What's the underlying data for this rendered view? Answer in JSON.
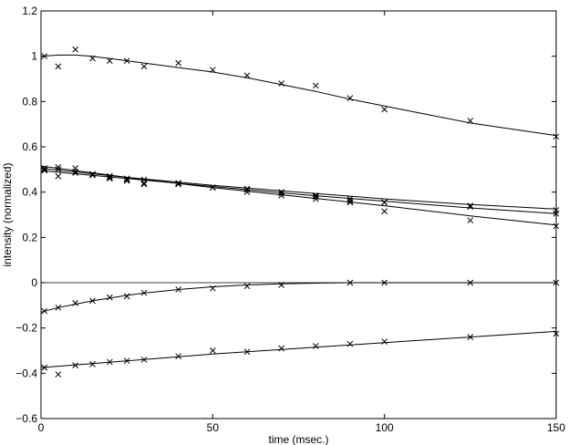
{
  "chart_data": {
    "type": "scatter",
    "title": "",
    "xlabel": "time (msec.)",
    "ylabel": "intensity (normalized)",
    "xlim": [
      0,
      150
    ],
    "ylim": [
      -0.6,
      1.2
    ],
    "xticks": [
      "0",
      "50",
      "100",
      "150"
    ],
    "yticks": [
      "−0.6",
      "−0.4",
      "−0.2",
      "0",
      "0.2",
      "0.4",
      "0.6",
      "0.8",
      "1",
      "1.2"
    ],
    "grid": false,
    "legend": "none",
    "reference_line_y": 0,
    "marker": "x",
    "color": "#000000",
    "series": [
      {
        "points": [
          [
            1,
            1.0
          ],
          [
            5,
            0.955
          ],
          [
            10,
            1.03
          ],
          [
            15,
            0.99
          ],
          [
            20,
            0.98
          ],
          [
            25,
            0.98
          ],
          [
            30,
            0.955
          ],
          [
            40,
            0.97
          ],
          [
            50,
            0.94
          ],
          [
            60,
            0.915
          ],
          [
            70,
            0.88
          ],
          [
            80,
            0.87
          ],
          [
            90,
            0.815
          ],
          [
            100,
            0.765
          ],
          [
            125,
            0.715
          ],
          [
            150,
            0.645
          ]
        ],
        "fit": [
          [
            0,
            1.0
          ],
          [
            5,
            1.005
          ],
          [
            10,
            1.005
          ],
          [
            15,
            1.0
          ],
          [
            20,
            0.99
          ],
          [
            25,
            0.98
          ],
          [
            30,
            0.97
          ],
          [
            40,
            0.95
          ],
          [
            50,
            0.93
          ],
          [
            60,
            0.905
          ],
          [
            70,
            0.875
          ],
          [
            80,
            0.845
          ],
          [
            90,
            0.81
          ],
          [
            100,
            0.78
          ],
          [
            110,
            0.75
          ],
          [
            125,
            0.705
          ],
          [
            150,
            0.65
          ]
        ]
      },
      {
        "points": [
          [
            1,
            0.505
          ],
          [
            5,
            0.51
          ],
          [
            10,
            0.505
          ],
          [
            15,
            0.48
          ],
          [
            20,
            0.47
          ],
          [
            25,
            0.46
          ],
          [
            30,
            0.455
          ],
          [
            40,
            0.44
          ],
          [
            50,
            0.42
          ],
          [
            60,
            0.41
          ],
          [
            70,
            0.395
          ],
          [
            80,
            0.385
          ],
          [
            90,
            0.37
          ],
          [
            100,
            0.355
          ],
          [
            125,
            0.34
          ],
          [
            150,
            0.32
          ]
        ],
        "fit": [
          [
            0,
            0.505
          ],
          [
            25,
            0.465
          ],
          [
            50,
            0.43
          ],
          [
            75,
            0.4
          ],
          [
            100,
            0.37
          ],
          [
            125,
            0.345
          ],
          [
            150,
            0.325
          ]
        ]
      },
      {
        "points": [
          [
            1,
            0.5
          ],
          [
            5,
            0.5
          ],
          [
            10,
            0.49
          ],
          [
            15,
            0.475
          ],
          [
            20,
            0.465
          ],
          [
            25,
            0.455
          ],
          [
            30,
            0.44
          ],
          [
            40,
            0.44
          ],
          [
            50,
            0.42
          ],
          [
            60,
            0.415
          ],
          [
            70,
            0.4
          ],
          [
            80,
            0.38
          ],
          [
            90,
            0.36
          ],
          [
            100,
            0.355
          ],
          [
            125,
            0.335
          ],
          [
            150,
            0.305
          ]
        ],
        "fit": [
          [
            0,
            0.495
          ],
          [
            25,
            0.46
          ],
          [
            50,
            0.425
          ],
          [
            75,
            0.39
          ],
          [
            100,
            0.36
          ],
          [
            125,
            0.33
          ],
          [
            150,
            0.305
          ]
        ]
      },
      {
        "points": [
          [
            1,
            0.495
          ],
          [
            5,
            0.47
          ],
          [
            10,
            0.485
          ],
          [
            15,
            0.475
          ],
          [
            20,
            0.46
          ],
          [
            25,
            0.45
          ],
          [
            30,
            0.435
          ],
          [
            40,
            0.435
          ],
          [
            50,
            0.42
          ],
          [
            60,
            0.4
          ],
          [
            70,
            0.385
          ],
          [
            80,
            0.37
          ],
          [
            90,
            0.355
          ],
          [
            100,
            0.315
          ],
          [
            125,
            0.275
          ],
          [
            150,
            0.25
          ]
        ],
        "fit": [
          [
            0,
            0.515
          ],
          [
            25,
            0.465
          ],
          [
            50,
            0.42
          ],
          [
            75,
            0.38
          ],
          [
            100,
            0.34
          ],
          [
            125,
            0.295
          ],
          [
            150,
            0.255
          ]
        ]
      },
      {
        "points": [
          [
            1,
            -0.125
          ],
          [
            5,
            -0.11
          ],
          [
            10,
            -0.09
          ],
          [
            15,
            -0.08
          ],
          [
            20,
            -0.065
          ],
          [
            25,
            -0.06
          ],
          [
            30,
            -0.045
          ],
          [
            40,
            -0.03
          ],
          [
            50,
            -0.025
          ],
          [
            60,
            -0.015
          ],
          [
            70,
            -0.01
          ],
          [
            90,
            0.0
          ],
          [
            100,
            0.0
          ],
          [
            125,
            0.0
          ],
          [
            150,
            0.0
          ]
        ],
        "fit": [
          [
            0,
            -0.13
          ],
          [
            5,
            -0.11
          ],
          [
            10,
            -0.095
          ],
          [
            15,
            -0.08
          ],
          [
            20,
            -0.068
          ],
          [
            25,
            -0.056
          ],
          [
            30,
            -0.046
          ],
          [
            40,
            -0.03
          ],
          [
            50,
            -0.018
          ],
          [
            60,
            -0.01
          ],
          [
            70,
            -0.005
          ],
          [
            80,
            -0.002
          ],
          [
            90,
            0.0
          ],
          [
            100,
            0.0
          ],
          [
            150,
            0.0
          ]
        ]
      },
      {
        "points": [
          [
            1,
            -0.375
          ],
          [
            5,
            -0.405
          ],
          [
            10,
            -0.365
          ],
          [
            15,
            -0.36
          ],
          [
            20,
            -0.35
          ],
          [
            25,
            -0.345
          ],
          [
            30,
            -0.34
          ],
          [
            40,
            -0.325
          ],
          [
            50,
            -0.3
          ],
          [
            60,
            -0.305
          ],
          [
            70,
            -0.29
          ],
          [
            80,
            -0.28
          ],
          [
            90,
            -0.27
          ],
          [
            100,
            -0.26
          ],
          [
            125,
            -0.24
          ],
          [
            150,
            -0.225
          ]
        ],
        "fit": [
          [
            0,
            -0.375
          ],
          [
            25,
            -0.345
          ],
          [
            50,
            -0.315
          ],
          [
            75,
            -0.29
          ],
          [
            100,
            -0.265
          ],
          [
            125,
            -0.24
          ],
          [
            150,
            -0.215
          ]
        ]
      }
    ]
  }
}
